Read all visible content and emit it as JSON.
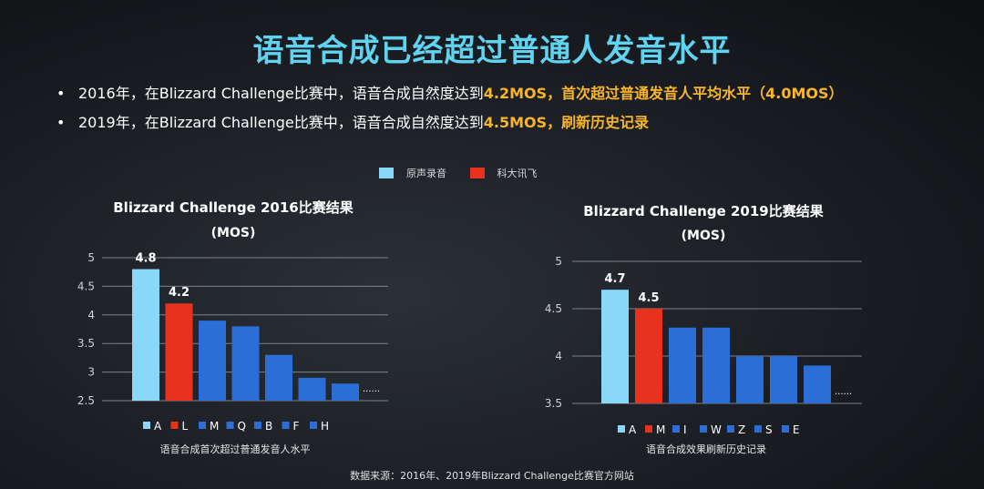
{
  "title": "语音合成已经超过普通人发音水平",
  "bullets": [
    {
      "bullet": "•",
      "normal": "2016年，在Blizzard Challenge比赛中，语音合成自然度达到",
      "highlight": "4.2MOS，首次超过普通发音人平均水平（4.0MOS）"
    },
    {
      "bullet": "•",
      "normal": "2019年，在Blizzard Challenge比赛中，语音合成自然度达到",
      "highlight": "4.5MOS，刷新历史记录"
    }
  ],
  "legend": [
    {
      "label": "原声录音",
      "color": "#8ad8f8"
    },
    {
      "label": "科大讯飞",
      "color": "#e8321e"
    }
  ],
  "colors": {
    "natural": "#8ad8f8",
    "iflytek": "#e8321e",
    "others": "#2b6fd6"
  },
  "chart_data": [
    {
      "type": "bar",
      "title": "Blizzard Challenge 2016比赛结果",
      "subtitle": "(MOS)",
      "categories": [
        "A",
        "L",
        "M",
        "Q",
        "B",
        "F",
        "H"
      ],
      "values": [
        4.8,
        4.2,
        3.9,
        3.8,
        3.3,
        2.9,
        2.8
      ],
      "data_labels": [
        "4.8",
        "4.2",
        "",
        "",
        "",
        "",
        ""
      ],
      "yticks": [
        "5",
        "4.5",
        "4",
        "3.5",
        "3",
        "2.5"
      ],
      "ylim": [
        2.5,
        5
      ],
      "grid": true,
      "ellipsis": "......",
      "xlabel": "语音合成首次超过普通发音人水平"
    },
    {
      "type": "bar",
      "title": "Blizzard Challenge 2019比赛结果",
      "subtitle": "(MOS)",
      "categories": [
        "A",
        "M",
        "I",
        "W",
        "Z",
        "S",
        "E"
      ],
      "values": [
        4.7,
        4.5,
        4.3,
        4.3,
        4.0,
        4.0,
        3.9
      ],
      "data_labels": [
        "4.7",
        "4.5",
        "",
        "",
        "",
        "",
        ""
      ],
      "yticks": [
        "5",
        "4.5",
        "4",
        "3.5"
      ],
      "ylim": [
        3.5,
        5
      ],
      "grid": true,
      "ellipsis": "......",
      "xlabel": "语音合成效果刷新历史记录"
    }
  ],
  "source": "数据来源：2016年、2019年Blizzard Challenge比赛官方网站"
}
